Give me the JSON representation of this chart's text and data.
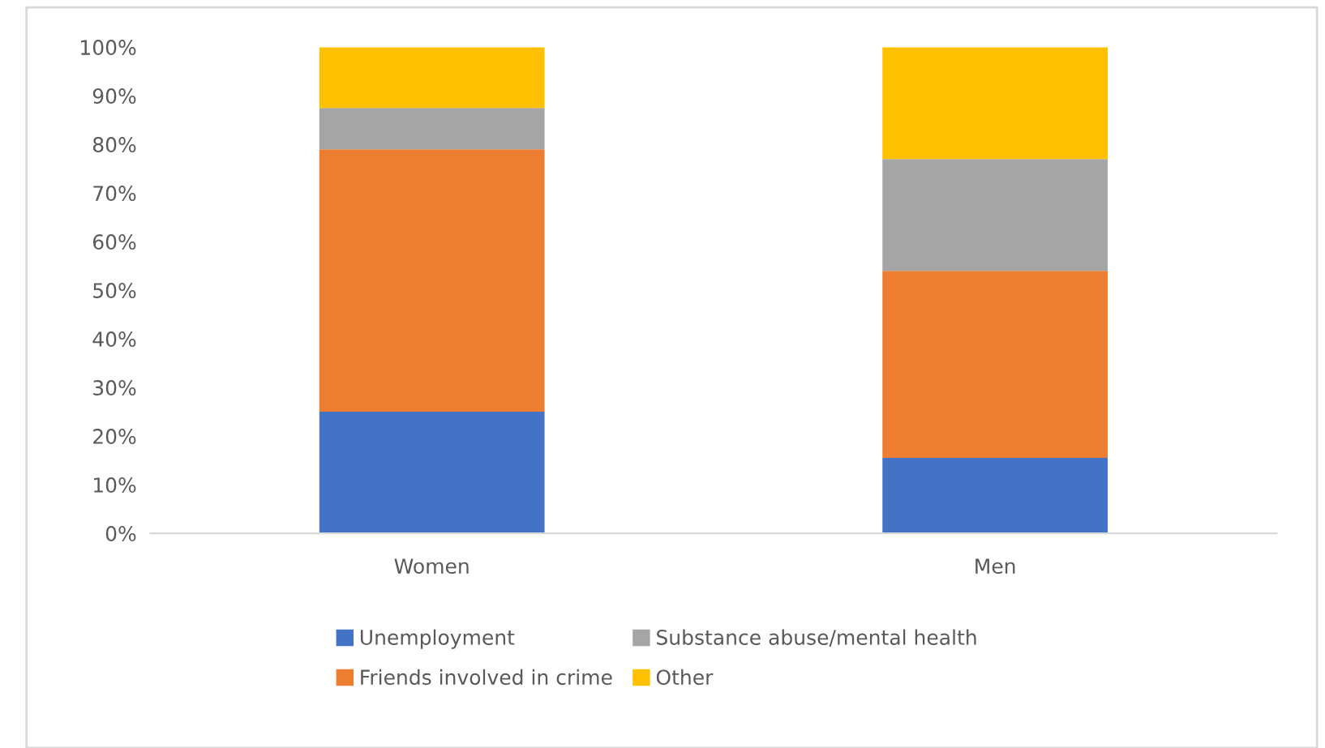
{
  "chart_data": {
    "type": "bar",
    "stacked": true,
    "categories": [
      "Women",
      "Men"
    ],
    "series": [
      {
        "name": "Unemployment",
        "color": "#4472c4",
        "values": [
          25,
          15.5
        ]
      },
      {
        "name": "Friends involved in crime",
        "color": "#ed7d31",
        "values": [
          54,
          38.5
        ]
      },
      {
        "name": "Substance abuse/mental health",
        "color": "#a5a5a5",
        "values": [
          8.5,
          23
        ]
      },
      {
        "name": "Other",
        "color": "#ffc000",
        "values": [
          12.5,
          23
        ]
      }
    ],
    "ylim": [
      0,
      100
    ],
    "yticks": [
      {
        "value": 0,
        "label": "0%"
      },
      {
        "value": 10,
        "label": "10%"
      },
      {
        "value": 20,
        "label": "20%"
      },
      {
        "value": 30,
        "label": "30%"
      },
      {
        "value": 40,
        "label": "40%"
      },
      {
        "value": 50,
        "label": "50%"
      },
      {
        "value": 60,
        "label": "60%"
      },
      {
        "value": 70,
        "label": "70%"
      },
      {
        "value": 80,
        "label": "80%"
      },
      {
        "value": 90,
        "label": "90%"
      },
      {
        "value": 100,
        "label": "100%"
      }
    ],
    "grid": false,
    "legend": "bottom"
  }
}
